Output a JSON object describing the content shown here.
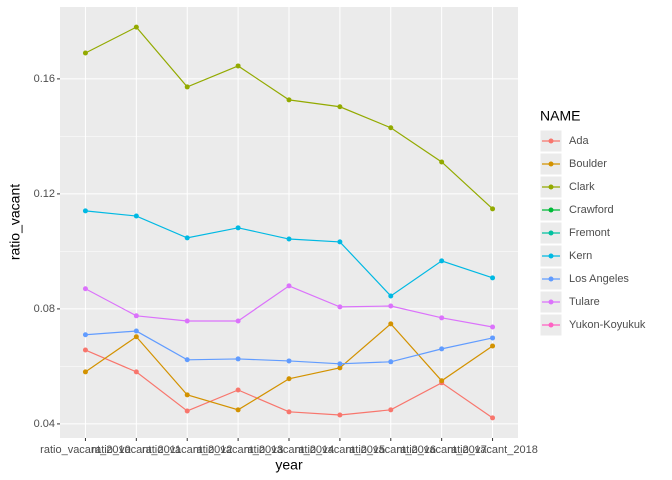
{
  "chart_data": {
    "type": "line",
    "x_label": "year",
    "y_label": "ratio_vacant",
    "legend_title": "NAME",
    "legend": "right",
    "grid": true,
    "categories": [
      "ratio_vacant_2010",
      "ratio_vacant_2011",
      "ratio_vacant_2012",
      "ratio_vacant_2013",
      "ratio_vacant_2014",
      "ratio_vacant_2015",
      "ratio_vacant_2016",
      "ratio_vacant_2017",
      "ratio_vacant_2018"
    ],
    "ylim": [
      0.0351,
      0.185
    ],
    "yticks": [
      0.04,
      0.08,
      0.12,
      0.16
    ],
    "series": [
      {
        "name": "Ada",
        "color": "#F8766D",
        "values": [
          0.0657,
          0.0581,
          0.0445,
          0.0518,
          0.0442,
          0.0431,
          0.0449,
          0.0543,
          0.0421
        ]
      },
      {
        "name": "Boulder",
        "color": "#D39200",
        "values": [
          0.0581,
          0.0703,
          0.0501,
          0.0449,
          0.0557,
          0.0595,
          0.0748,
          0.055,
          0.0671
        ]
      },
      {
        "name": "Clark",
        "color": "#93AA00",
        "values": [
          0.169,
          0.178,
          0.1572,
          0.1645,
          0.1527,
          0.1503,
          0.143,
          0.1311,
          0.1148
        ]
      },
      {
        "name": "Crawford",
        "color": "#00BA38",
        "values": [
          null,
          null,
          null,
          null,
          null,
          null,
          null,
          null,
          null
        ]
      },
      {
        "name": "Fremont",
        "color": "#00C19F",
        "values": [
          null,
          null,
          null,
          null,
          null,
          null,
          null,
          null,
          null
        ]
      },
      {
        "name": "Kern",
        "color": "#00B9E3",
        "values": [
          0.1141,
          0.1123,
          0.1047,
          0.1082,
          0.1043,
          0.1033,
          0.0845,
          0.0967,
          0.0908
        ]
      },
      {
        "name": "Los Angeles",
        "color": "#619CFF",
        "values": [
          0.071,
          0.0723,
          0.0623,
          0.0626,
          0.0619,
          0.0609,
          0.0616,
          0.0661,
          0.0699
        ]
      },
      {
        "name": "Tulare",
        "color": "#DB72FB",
        "values": [
          0.087,
          0.0776,
          0.0758,
          0.0758,
          0.088,
          0.0807,
          0.081,
          0.0769,
          0.0737
        ]
      },
      {
        "name": "Yukon-Koyukuk",
        "color": "#FF61C3",
        "values": [
          null,
          null,
          null,
          null,
          null,
          null,
          null,
          null,
          null
        ]
      }
    ]
  }
}
